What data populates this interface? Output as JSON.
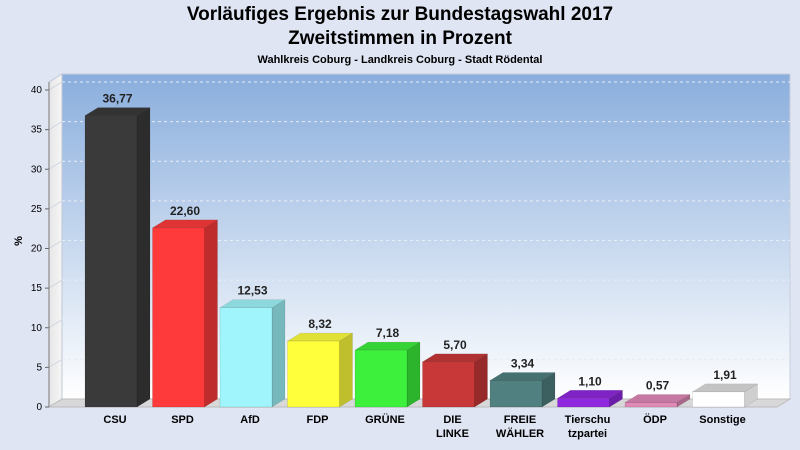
{
  "chart_data": {
    "type": "bar",
    "title": "Vorläufiges Ergebnis zur Bundestagswahl 2017",
    "subtitle": "Zweitstimmen in Prozent",
    "subtitle2": "Wahlkreis Coburg - Landkreis Coburg - Stadt Rödental",
    "ylabel": "%",
    "xlabel": "",
    "ylim": [
      0,
      40
    ],
    "yticks": [
      "0",
      "5",
      "10",
      "15",
      "20",
      "25",
      "30",
      "35",
      "40"
    ],
    "categories": [
      "CSU",
      "SPD",
      "AfD",
      "FDP",
      "GRÜNE",
      "DIE\nLINKE",
      "FREIE\nWÄHLER",
      "Tierschu\ntzpartei",
      "ÖDP",
      "Sonstige"
    ],
    "values": [
      36.77,
      22.6,
      12.53,
      8.32,
      7.18,
      5.7,
      3.34,
      1.1,
      0.57,
      1.91
    ],
    "value_labels": [
      "36,77",
      "22,60",
      "12,53",
      "8,32",
      "7,18",
      "5,70",
      "3,34",
      "1,10",
      "0,57",
      "1,91"
    ],
    "colors": [
      "#3a3a3a",
      "#ff3a3a",
      "#9ff5fb",
      "#ffff3c",
      "#3cf03c",
      "#c83838",
      "#508080",
      "#9028e0",
      "#e08ab8",
      "#ffffff"
    ],
    "grid": true,
    "legend": "none"
  }
}
